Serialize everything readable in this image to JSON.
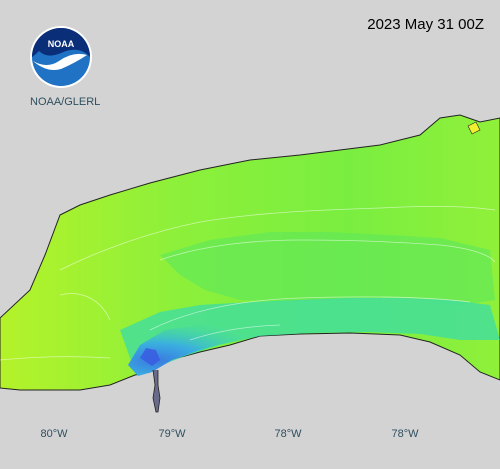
{
  "title": {
    "timestamp": "2023 May 31 00Z"
  },
  "logo": {
    "text": "NOAA",
    "caption": "NOAA/GLERL",
    "icon": "noaa-logo-icon"
  },
  "longitude_labels": [
    "80°W",
    "79°W",
    "78°W",
    "78°W"
  ],
  "colors": {
    "background": "#d3d3d3",
    "lake_green": "#84ee3a",
    "lake_lime": "#b4f22a",
    "lake_cyan": "#3fe0a0",
    "lake_blue": "#3a9ce6",
    "shoreline": "#222222",
    "contour": "#ffffff"
  }
}
